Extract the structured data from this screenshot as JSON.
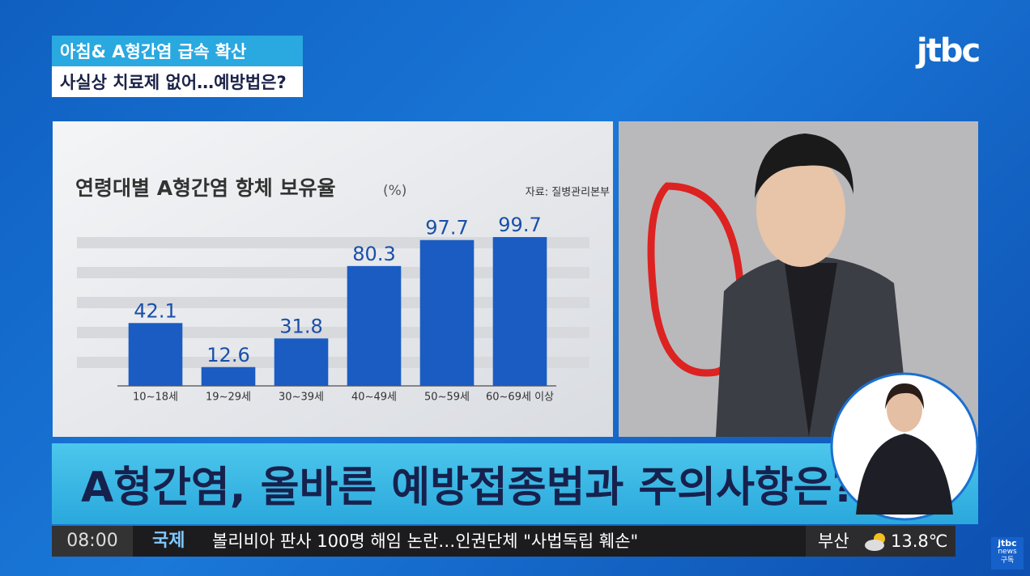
{
  "header": {
    "line1": "아침& A형간염 급속 확산",
    "line2": "사실상 치료제 없어…예방법은?",
    "logo": "jtbc"
  },
  "chart_data": {
    "type": "bar",
    "title": "연령대별 A형간염 항체 보유율",
    "unit": "(%)",
    "source": "자료: 질병관리본부",
    "categories": [
      "10~18세",
      "19~29세",
      "30~39세",
      "40~49세",
      "50~59세",
      "60~69세 이상"
    ],
    "values": [
      42.1,
      12.6,
      31.8,
      80.3,
      97.7,
      99.7
    ],
    "color": "#1a5cc2",
    "ylim": [
      0,
      100
    ]
  },
  "banner": {
    "text": "A형간염, 올바른 예방접종법과 주의사항은?"
  },
  "ticker": {
    "time": "08:00",
    "section": "국제",
    "headline": "볼리비아 판사 100명 해임 논란…인권단체 \"사법독립 훼손\"",
    "city": "부산",
    "temperature": "13.8℃"
  },
  "subscribe": {
    "brand": "jtbc",
    "sub": "news",
    "label": "구독"
  }
}
